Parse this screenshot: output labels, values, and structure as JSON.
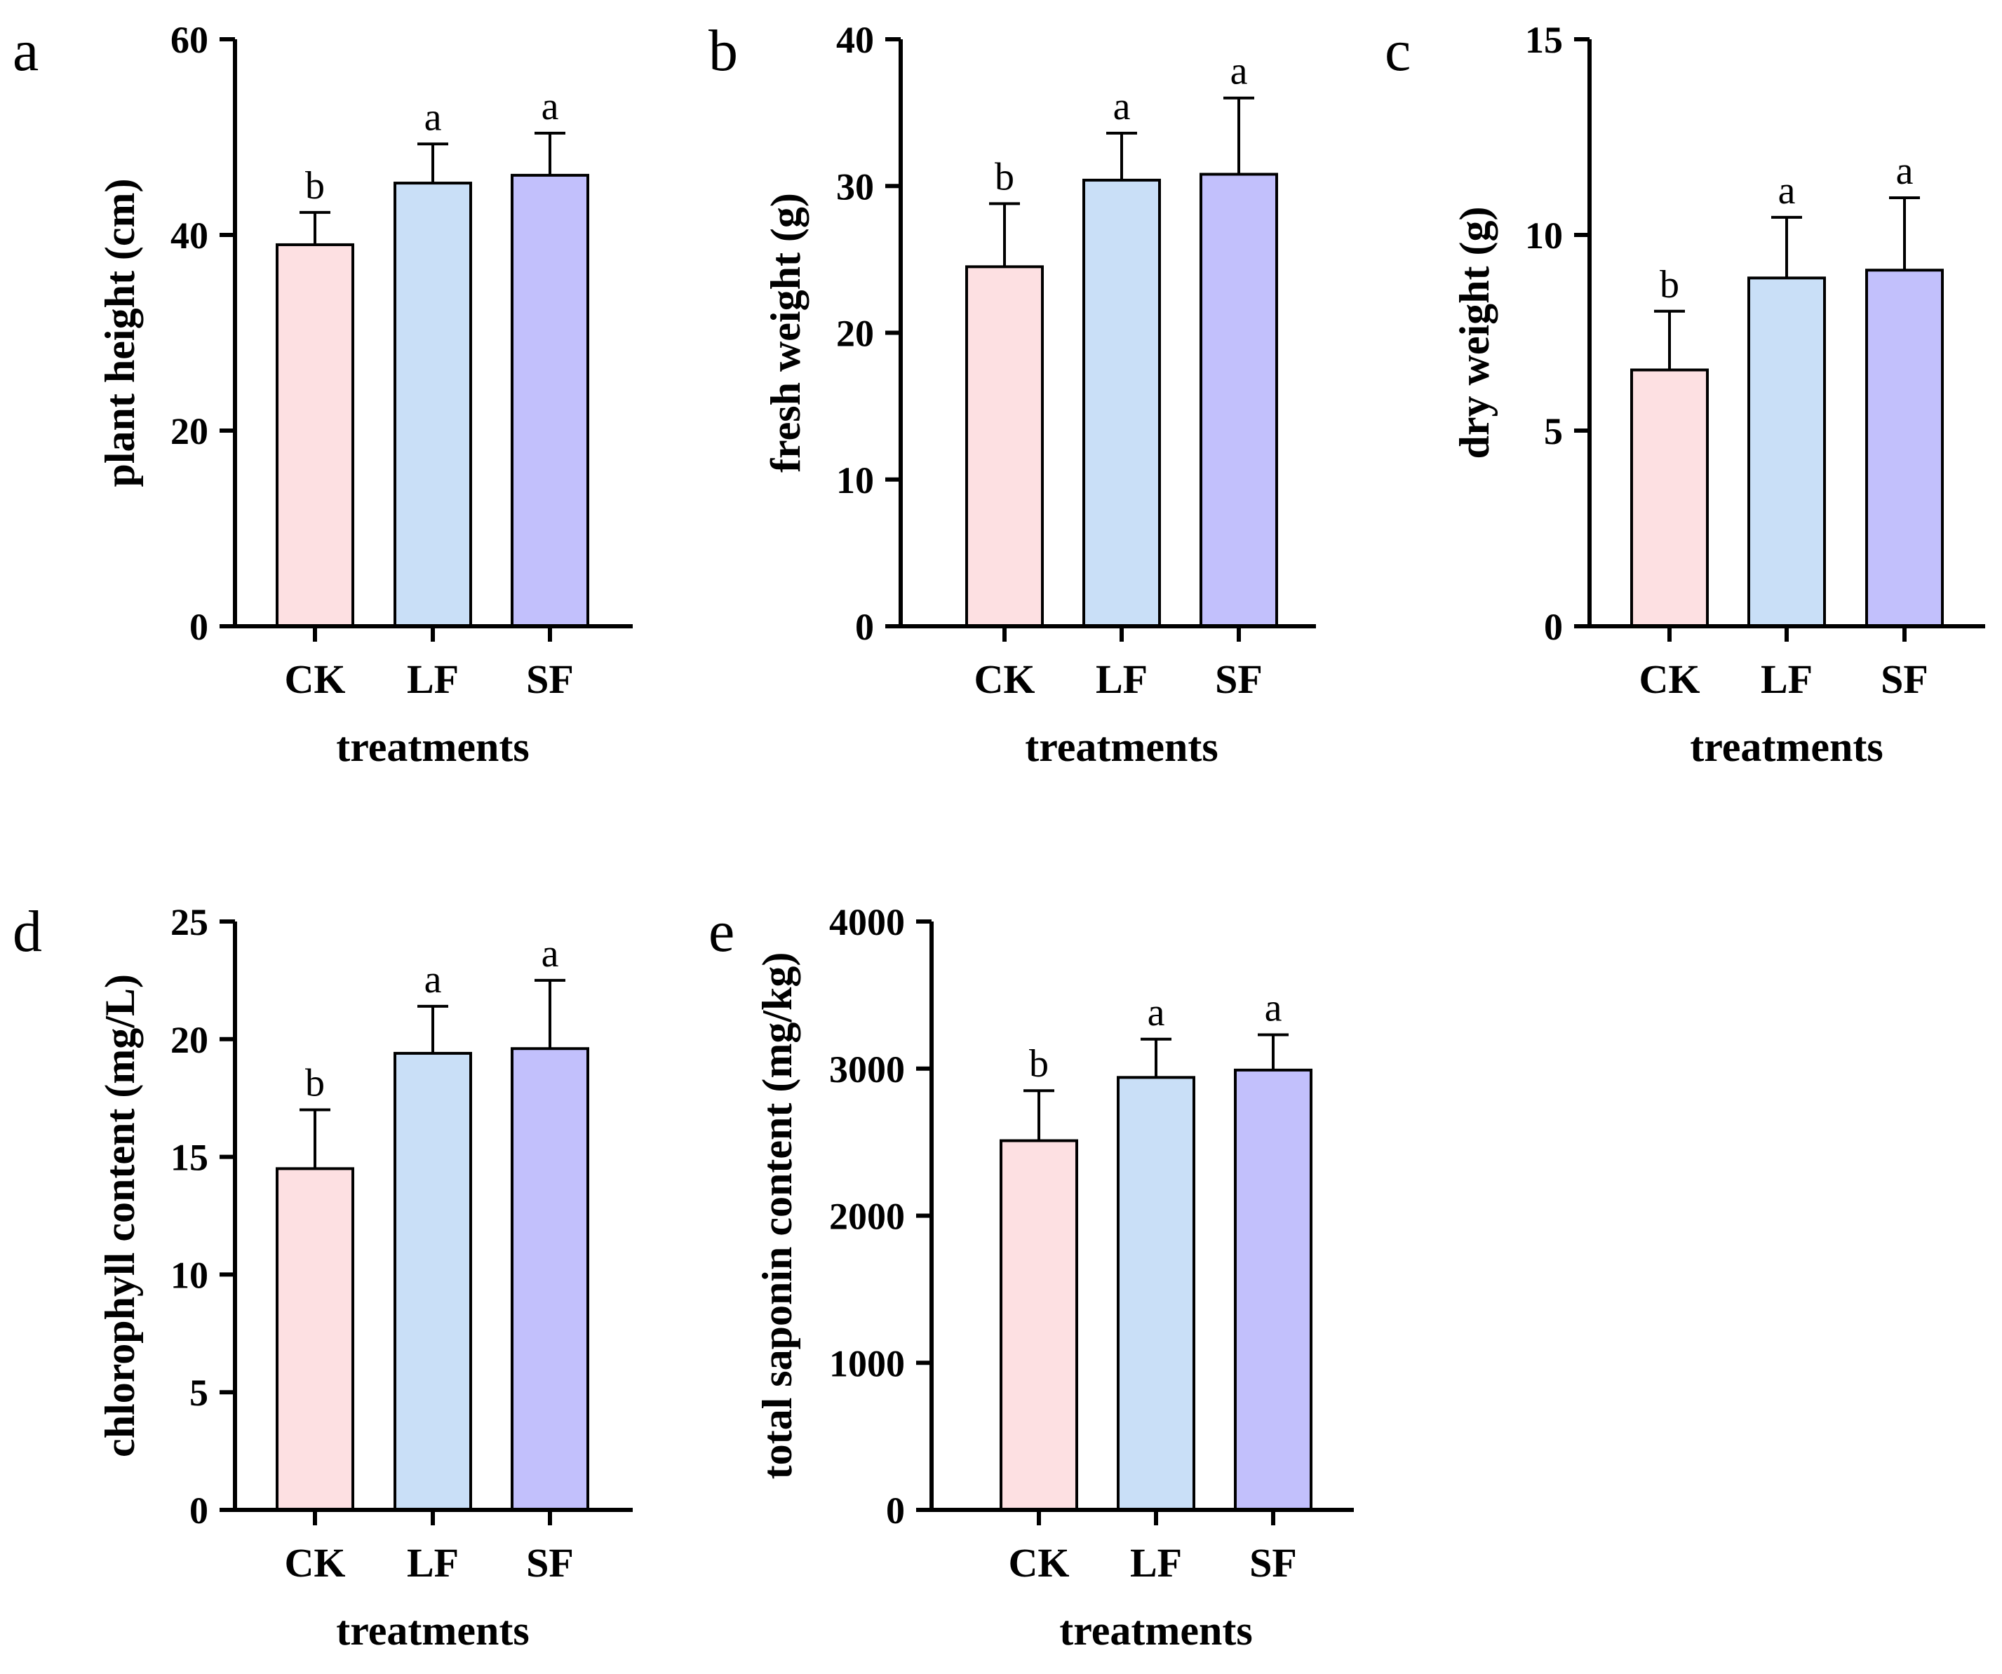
{
  "chart_data": [
    {
      "panel": "a",
      "type": "bar",
      "categories": [
        "CK",
        "LF",
        "SF"
      ],
      "values": [
        39,
        45.3,
        46.1
      ],
      "errors": [
        3.3,
        4,
        4.3
      ],
      "significance": [
        "b",
        "a",
        "a"
      ],
      "colors": [
        "#fde0e2",
        "#c9dff7",
        "#c2c0fc"
      ],
      "ylim": [
        0,
        60
      ],
      "yticks": [
        "0",
        "20",
        "40",
        "60"
      ],
      "ylabel": "plant height (cm)",
      "xlabel": "treatments"
    },
    {
      "panel": "b",
      "type": "bar",
      "categories": [
        "CK",
        "LF",
        "SF"
      ],
      "values": [
        24.5,
        30.4,
        30.8
      ],
      "errors": [
        4.3,
        3.2,
        5.2
      ],
      "significance": [
        "b",
        "a",
        "a"
      ],
      "colors": [
        "#fde0e2",
        "#c9dff7",
        "#c2c0fc"
      ],
      "ylim": [
        0,
        40
      ],
      "yticks": [
        "0",
        "10",
        "20",
        "30",
        "40"
      ],
      "ylabel": "fresh weight (g)",
      "xlabel": "treatments"
    },
    {
      "panel": "c",
      "type": "bar",
      "categories": [
        "CK",
        "LF",
        "SF"
      ],
      "values": [
        6.55,
        8.9,
        9.1
      ],
      "errors": [
        1.5,
        1.55,
        1.85
      ],
      "significance": [
        "b",
        "a",
        "a"
      ],
      "colors": [
        "#fde0e2",
        "#c9dff7",
        "#c2c0fc"
      ],
      "ylim": [
        0,
        15
      ],
      "yticks": [
        "0",
        "5",
        "10",
        "15"
      ],
      "ylabel": "dry weight (g)",
      "xlabel": "treatments"
    },
    {
      "panel": "d",
      "type": "bar",
      "categories": [
        "CK",
        "LF",
        "SF"
      ],
      "values": [
        14.5,
        19.4,
        19.6
      ],
      "errors": [
        2.5,
        2,
        2.9
      ],
      "significance": [
        "b",
        "a",
        "a"
      ],
      "colors": [
        "#fde0e2",
        "#c9dff7",
        "#c2c0fc"
      ],
      "ylim": [
        0,
        25
      ],
      "yticks": [
        "0",
        "5",
        "10",
        "15",
        "20",
        "25"
      ],
      "ylabel": "chlorophyll content (mg/L)",
      "xlabel": "treatments"
    },
    {
      "panel": "e",
      "type": "bar",
      "categories": [
        "CK",
        "LF",
        "SF"
      ],
      "values": [
        2510,
        2940,
        2990
      ],
      "errors": [
        340,
        260,
        240
      ],
      "significance": [
        "b",
        "a",
        "a"
      ],
      "colors": [
        "#fde0e2",
        "#c9dff7",
        "#c2c0fc"
      ],
      "ylim": [
        0,
        4000
      ],
      "yticks": [
        "0",
        "1000",
        "2000",
        "3000",
        "4000"
      ],
      "ylabel": "total saponin content (mg/kg)",
      "xlabel": "treatments"
    }
  ]
}
